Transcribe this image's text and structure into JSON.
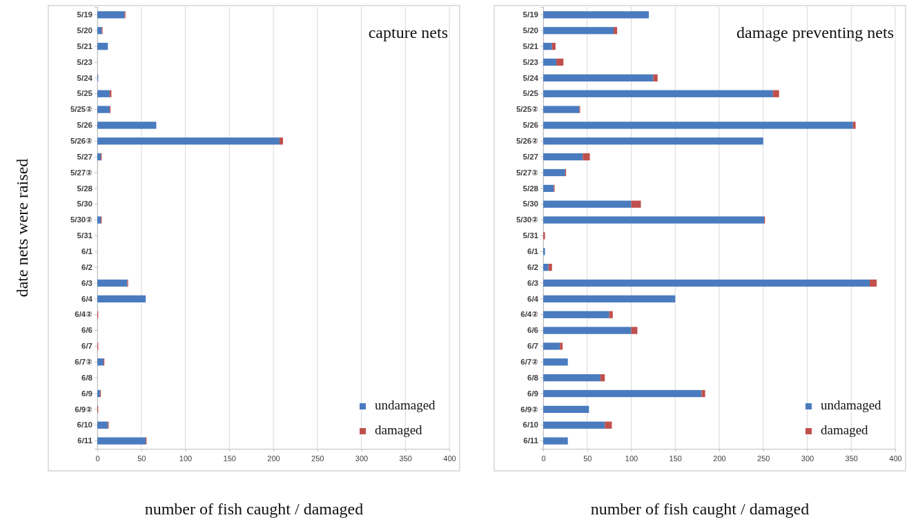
{
  "chart_data": [
    {
      "type": "bar",
      "orientation": "horizontal",
      "stacked": true,
      "title": "capture nets",
      "xlabel": "number of fish caught / damaged",
      "ylabel": "date nets were raised",
      "categories": [
        "5/19",
        "5/20",
        "5/21",
        "5/23",
        "5/24",
        "5/25",
        "5/25②",
        "5/26",
        "5/26②",
        "5/27",
        "5/27②",
        "5/28",
        "5/30",
        "5/30②",
        "5/31",
        "6/1",
        "6/2",
        "6/3",
        "6/4",
        "6/4②",
        "6/6",
        "6/7",
        "6/7②",
        "6/8",
        "6/9",
        "6/9②",
        "6/10",
        "6/11"
      ],
      "series": [
        {
          "name": "undamaged",
          "color": "#4a7bbf",
          "values": [
            31,
            5,
            12,
            0,
            1,
            14,
            14,
            67,
            207,
            4,
            0,
            0,
            0,
            4,
            0,
            0,
            0,
            34,
            55,
            0,
            0,
            0,
            7,
            0,
            3,
            0,
            12,
            55
          ]
        },
        {
          "name": "damaged",
          "color": "#c0504d",
          "values": [
            1,
            1,
            0,
            0,
            0,
            2,
            1,
            0,
            4,
            1,
            0,
            0,
            0,
            1,
            0,
            0,
            0,
            1,
            0,
            1,
            0,
            1,
            1,
            0,
            1,
            1,
            1,
            1
          ]
        }
      ],
      "xlim": [
        0,
        400
      ],
      "xticks": [
        0,
        50,
        100,
        150,
        200,
        250,
        300,
        350,
        400
      ],
      "grid": "x",
      "legend": "bottom right"
    },
    {
      "type": "bar",
      "orientation": "horizontal",
      "stacked": true,
      "title": "damage preventing nets",
      "xlabel": "number of fish caught / damaged",
      "categories": [
        "5/19",
        "5/20",
        "5/21",
        "5/23",
        "5/24",
        "5/25",
        "5/25②",
        "5/26",
        "5/26②",
        "5/27",
        "5/27②",
        "5/28",
        "5/30",
        "5/30②",
        "5/31",
        "6/1",
        "6/2",
        "6/3",
        "6/4",
        "6/4②",
        "6/6",
        "6/7",
        "6/7②",
        "6/8",
        "6/9",
        "6/9②",
        "6/10",
        "6/11"
      ],
      "series": [
        {
          "name": "undamaged",
          "color": "#4a7bbf",
          "values": [
            120,
            80,
            10,
            15,
            125,
            261,
            41,
            352,
            250,
            45,
            25,
            12,
            100,
            251,
            0,
            2,
            6,
            371,
            150,
            75,
            100,
            19,
            28,
            65,
            180,
            52,
            70,
            28
          ]
        },
        {
          "name": "damaged",
          "color": "#c0504d",
          "values": [
            0,
            4,
            4,
            8,
            5,
            7,
            1,
            3,
            0,
            8,
            1,
            1,
            11,
            1,
            2,
            0,
            4,
            8,
            0,
            4,
            7,
            3,
            0,
            5,
            4,
            0,
            8,
            0
          ]
        }
      ],
      "xlim": [
        0,
        400
      ],
      "xticks": [
        0,
        50,
        100,
        150,
        200,
        250,
        300,
        350,
        400
      ],
      "grid": "x",
      "legend": "bottom right"
    }
  ]
}
